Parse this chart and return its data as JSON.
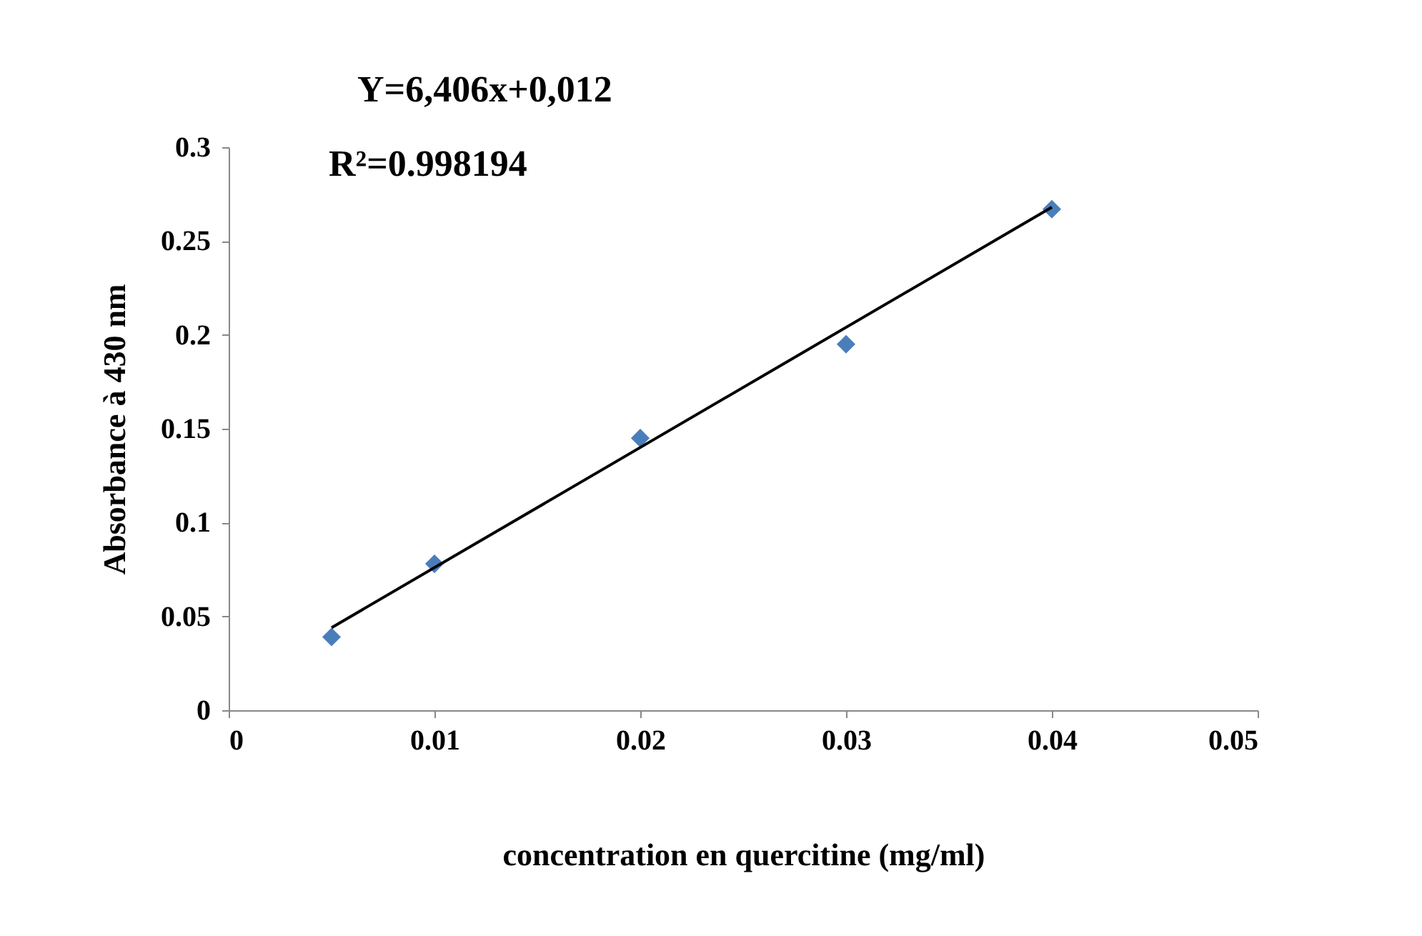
{
  "chart_data": {
    "type": "scatter",
    "xlabel": "concentration en quercitine (mg/ml)",
    "ylabel": "Absorbance à 430 nm",
    "annotations": [
      "Y=6,406x+0,012",
      "R²=0.998194"
    ],
    "x": [
      0.005,
      0.01,
      0.02,
      0.03,
      0.04
    ],
    "series": [
      {
        "color": "#4a7ebb",
        "marker": "diamond",
        "values": [
          0.039,
          0.078,
          0.145,
          0.195,
          0.267
        ]
      },
      {
        "type": "line",
        "color": "#000000",
        "x": [
          0.005,
          0.04
        ],
        "values": [
          0.044,
          0.268
        ],
        "line_style": "solid"
      }
    ],
    "xlim": [
      0,
      0.05
    ],
    "xticks": [
      0,
      0.01,
      0.02,
      0.03,
      0.04,
      0.05
    ],
    "ylim": [
      0,
      0.3
    ],
    "yticks": [
      0,
      0.05,
      0.1,
      0.15,
      0.2,
      0.25,
      0.3
    ],
    "grid": false
  }
}
